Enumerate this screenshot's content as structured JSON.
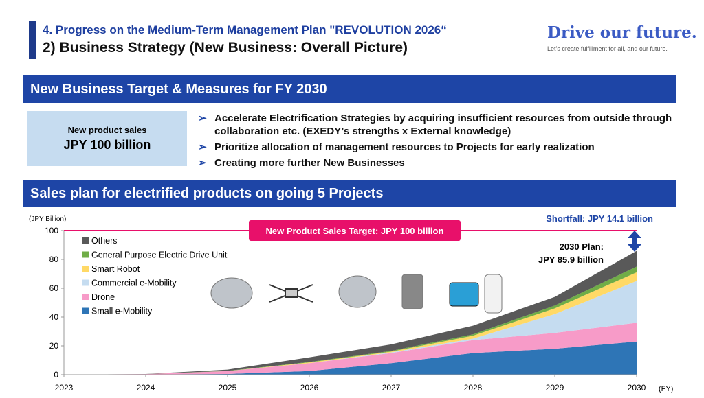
{
  "header": {
    "section": "4. Progress on the Medium-Term Management Plan \"REVOLUTION 2026“",
    "title": "2) Business Strategy (New Business: Overall Picture)",
    "brand": "Drive our future.",
    "tagline": "Let’s create fulfillment for all, and our future."
  },
  "target_band": "New Business Target & Measures for FY 2030",
  "target_box": {
    "label": "New product sales",
    "value": "JPY 100 billion"
  },
  "measures": [
    "Accelerate Electrification Strategies by acquiring insufficient resources from outside through collaboration etc. (EXEDY’s strengths x External knowledge)",
    "Prioritize allocation of management resources to Projects for early realization",
    "Creating more further New Businesses"
  ],
  "sales_band": "Sales plan for electrified products on going 5 Projects",
  "chart_data": {
    "type": "area",
    "stacked": true,
    "ylabel": "(JPY Billion)",
    "xlabel": "(FY)",
    "ylim": [
      0,
      100
    ],
    "yticks": [
      0,
      20,
      40,
      60,
      80,
      100
    ],
    "x": [
      "2023",
      "2024",
      "2025",
      "2026",
      "2027",
      "2028",
      "2029",
      "2030"
    ],
    "series": [
      {
        "name": "Small e-Mobility",
        "color": "#2e75b6",
        "values": [
          0,
          0.2,
          0.5,
          2.5,
          8,
          15,
          18,
          23
        ]
      },
      {
        "name": "Drone",
        "color": "#f79bc8",
        "values": [
          0,
          0.2,
          2,
          5.5,
          7,
          9,
          11,
          13
        ]
      },
      {
        "name": "Commercial e-Mobility",
        "color": "#c5dcf0",
        "values": [
          0,
          0,
          0,
          0,
          0.5,
          1,
          13,
          29
        ]
      },
      {
        "name": "Smart Robot",
        "color": "#ffd966",
        "values": [
          0,
          0,
          0,
          0.5,
          0.5,
          2,
          4,
          6
        ]
      },
      {
        "name": "General Purpose Electric Drive Unit",
        "color": "#70ad47",
        "values": [
          0,
          0,
          0.2,
          0.3,
          0.5,
          1,
          2,
          4
        ]
      },
      {
        "name": "Others",
        "color": "#595959",
        "values": [
          0,
          0.1,
          0.8,
          3.2,
          4.5,
          6,
          6,
          10.9
        ]
      }
    ],
    "target": {
      "value": 100,
      "label": "New Product Sales Target: JPY 100 billion",
      "color": "#e8106a"
    },
    "annotations": {
      "plan": "2030 Plan:",
      "plan_value": "JPY 85.9 billion",
      "shortfall": "Shortfall: JPY 14.1 billion"
    },
    "legend_position": "top-left"
  }
}
